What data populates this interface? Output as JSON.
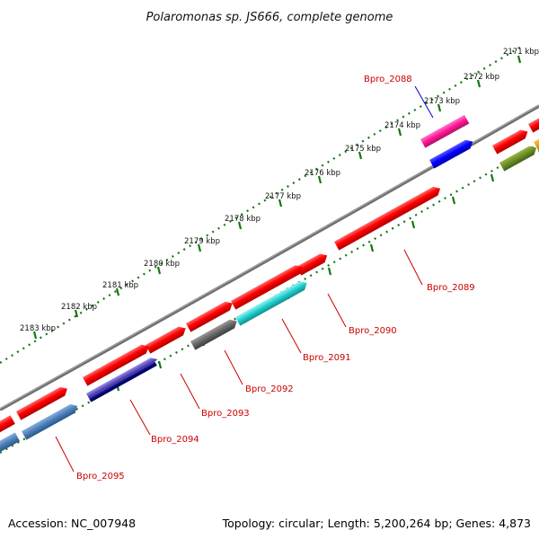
{
  "title": "Polaromonas sp. JS666, complete genome",
  "scale_labels": [
    "2171 kbp",
    "2172 kbp",
    "2173 kbp",
    "2174 kbp",
    "2175 kbp",
    "2176 kbp",
    "2177 kbp",
    "2178 kbp",
    "2179 kbp",
    "2180 kbp",
    "2181 kbp",
    "2182 kbp",
    "2183 kbp"
  ],
  "gene_labels": [
    {
      "text": "Bpro_2088",
      "color": "#0000cc"
    },
    {
      "text": "Bpro_2089",
      "color": "#cc0000"
    },
    {
      "text": "Bpro_2090",
      "color": "#cc0000"
    },
    {
      "text": "Bpro_2091",
      "color": "#cc0000"
    },
    {
      "text": "Bpro_2092",
      "color": "#cc0000"
    },
    {
      "text": "Bpro_2093",
      "color": "#cc0000"
    },
    {
      "text": "Bpro_2094",
      "color": "#cc0000"
    },
    {
      "text": "Bpro_2095",
      "color": "#cc0000"
    }
  ],
  "footer": {
    "accession": "Accession: NC_007948",
    "summary": "Topology: circular; Length: 5,200,264 bp; Genes: 4,873"
  }
}
